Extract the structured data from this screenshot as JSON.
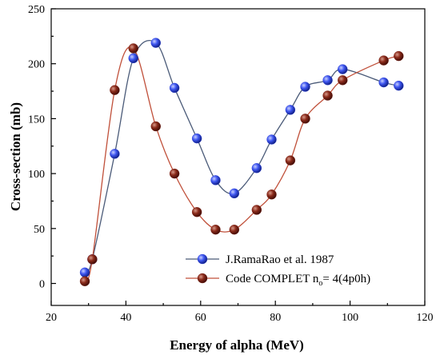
{
  "chart_data": {
    "type": "scatter",
    "xlabel": "Energy of alpha (MeV)",
    "ylabel": "Cross-section (mb)",
    "xlim": [
      20,
      120
    ],
    "ylim": [
      -20,
      250
    ],
    "xticks": [
      20,
      40,
      60,
      80,
      100,
      120
    ],
    "yticks": [
      0,
      50,
      100,
      150,
      200,
      250
    ],
    "grid": false,
    "legend_position": "bottom-right",
    "series": [
      {
        "name": "J.RamaRao et al. 1987",
        "marker_color": "#2a3dd6",
        "line_color": "#4a5a78",
        "points": [
          {
            "x": 29,
            "y": 10
          },
          {
            "x": 31,
            "y": 22
          },
          {
            "x": 37,
            "y": 118
          },
          {
            "x": 42,
            "y": 205
          },
          {
            "x": 48,
            "y": 219
          },
          {
            "x": 53,
            "y": 178
          },
          {
            "x": 59,
            "y": 132
          },
          {
            "x": 64,
            "y": 94
          },
          {
            "x": 69,
            "y": 82
          },
          {
            "x": 75,
            "y": 105
          },
          {
            "x": 79,
            "y": 131
          },
          {
            "x": 84,
            "y": 158
          },
          {
            "x": 88,
            "y": 179
          },
          {
            "x": 94,
            "y": 185
          },
          {
            "x": 98,
            "y": 195
          },
          {
            "x": 109,
            "y": 183
          },
          {
            "x": 113,
            "y": 180
          }
        ]
      },
      {
        "name": "Code COMPLET n",
        "name_subscript": "o",
        "name_suffix": "= 4(4p0h)",
        "marker_color": "#7a1e12",
        "line_color": "#c0503a",
        "points": [
          {
            "x": 29,
            "y": 2
          },
          {
            "x": 31,
            "y": 22
          },
          {
            "x": 37,
            "y": 176
          },
          {
            "x": 42,
            "y": 214
          },
          {
            "x": 48,
            "y": 143
          },
          {
            "x": 53,
            "y": 100
          },
          {
            "x": 59,
            "y": 65
          },
          {
            "x": 64,
            "y": 49
          },
          {
            "x": 69,
            "y": 49
          },
          {
            "x": 75,
            "y": 67
          },
          {
            "x": 79,
            "y": 81
          },
          {
            "x": 84,
            "y": 112
          },
          {
            "x": 88,
            "y": 150
          },
          {
            "x": 94,
            "y": 171
          },
          {
            "x": 98,
            "y": 185
          },
          {
            "x": 109,
            "y": 203
          },
          {
            "x": 113,
            "y": 207
          }
        ]
      }
    ]
  }
}
